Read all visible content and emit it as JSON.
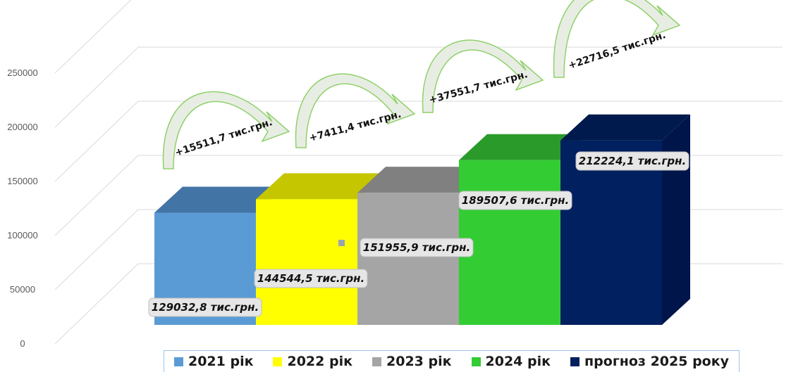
{
  "chart_data": {
    "type": "bar",
    "categories": [
      "2021 рік",
      "2022 рік",
      "2023 рік",
      "2024 рік",
      "прогноз 2025 року"
    ],
    "values": [
      129032.8,
      144544.5,
      151955.9,
      189507.6,
      212224.1
    ],
    "data_labels": [
      "129032,8 тис.грн.",
      "144544,5 тис.грн.",
      "151955,9 тис.грн.",
      "189507,6 тис.грн.",
      "212224,1 тис.грн."
    ],
    "increments": [
      "+15511,7 тис.грн.",
      "+7411,4 тис.грн.",
      "+37551,7 тис.грн.",
      "+22716,5 тис.грн."
    ],
    "colors": [
      "#5b9bd5",
      "#ffff00",
      "#a5a5a5",
      "#33cc33",
      "#002060"
    ],
    "top_colors": [
      "#4374a6",
      "#c6c600",
      "#808080",
      "#2a9a2a",
      "#001a4d"
    ],
    "side_colors": [
      null,
      null,
      null,
      null,
      "#00154a"
    ],
    "yticks": [
      "0",
      "50000",
      "100000",
      "150000",
      "200000",
      "250000"
    ],
    "ylim": [
      0,
      250000
    ],
    "grid": true,
    "legend_position": "bottom",
    "title": "",
    "xlabel": "",
    "ylabel": ""
  },
  "legend": {
    "items": [
      {
        "label": "2021 рік",
        "color": "#5b9bd5"
      },
      {
        "label": "2022 рік",
        "color": "#ffff00"
      },
      {
        "label": "2023 рік",
        "color": "#a5a5a5"
      },
      {
        "label": "2024 рік",
        "color": "#33cc33"
      },
      {
        "label": "прогноз 2025 року",
        "color": "#002060"
      }
    ]
  }
}
